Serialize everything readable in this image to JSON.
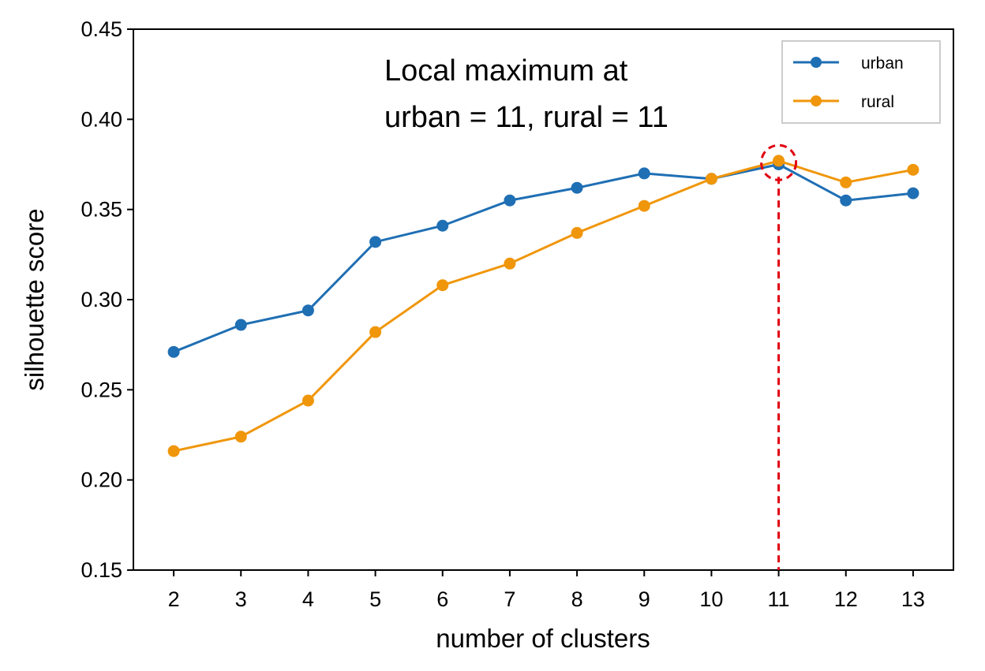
{
  "chart_data": {
    "type": "line",
    "title": "",
    "xlabel": "number of clusters",
    "ylabel": "silhouette score",
    "x": [
      2,
      3,
      4,
      5,
      6,
      7,
      8,
      9,
      10,
      11,
      12,
      13
    ],
    "xticks": [
      "2",
      "3",
      "4",
      "5",
      "6",
      "7",
      "8",
      "9",
      "10",
      "11",
      "12",
      "13"
    ],
    "xlim": [
      1.4,
      13.6
    ],
    "ylim": [
      0.15,
      0.45
    ],
    "yticks": [
      "0.15",
      "0.20",
      "0.25",
      "0.30",
      "0.35",
      "0.40",
      "0.45"
    ],
    "series": [
      {
        "name": "urban",
        "color": "#1f6fb4",
        "values": [
          0.271,
          0.286,
          0.294,
          0.332,
          0.341,
          0.355,
          0.362,
          0.37,
          0.367,
          0.375,
          0.355,
          0.359
        ]
      },
      {
        "name": "rural",
        "color": "#f0960a",
        "values": [
          0.216,
          0.224,
          0.244,
          0.282,
          0.308,
          0.32,
          0.337,
          0.352,
          0.367,
          0.377,
          0.365,
          0.372
        ]
      }
    ],
    "annotation": {
      "lines": [
        "Local maximum at",
        "urban = 11, rural = 11"
      ],
      "highlight_x": 11,
      "highlight_y": 0.376,
      "highlight_color": "#e00010"
    },
    "legend": {
      "position": "top-right"
    },
    "grid": false
  }
}
